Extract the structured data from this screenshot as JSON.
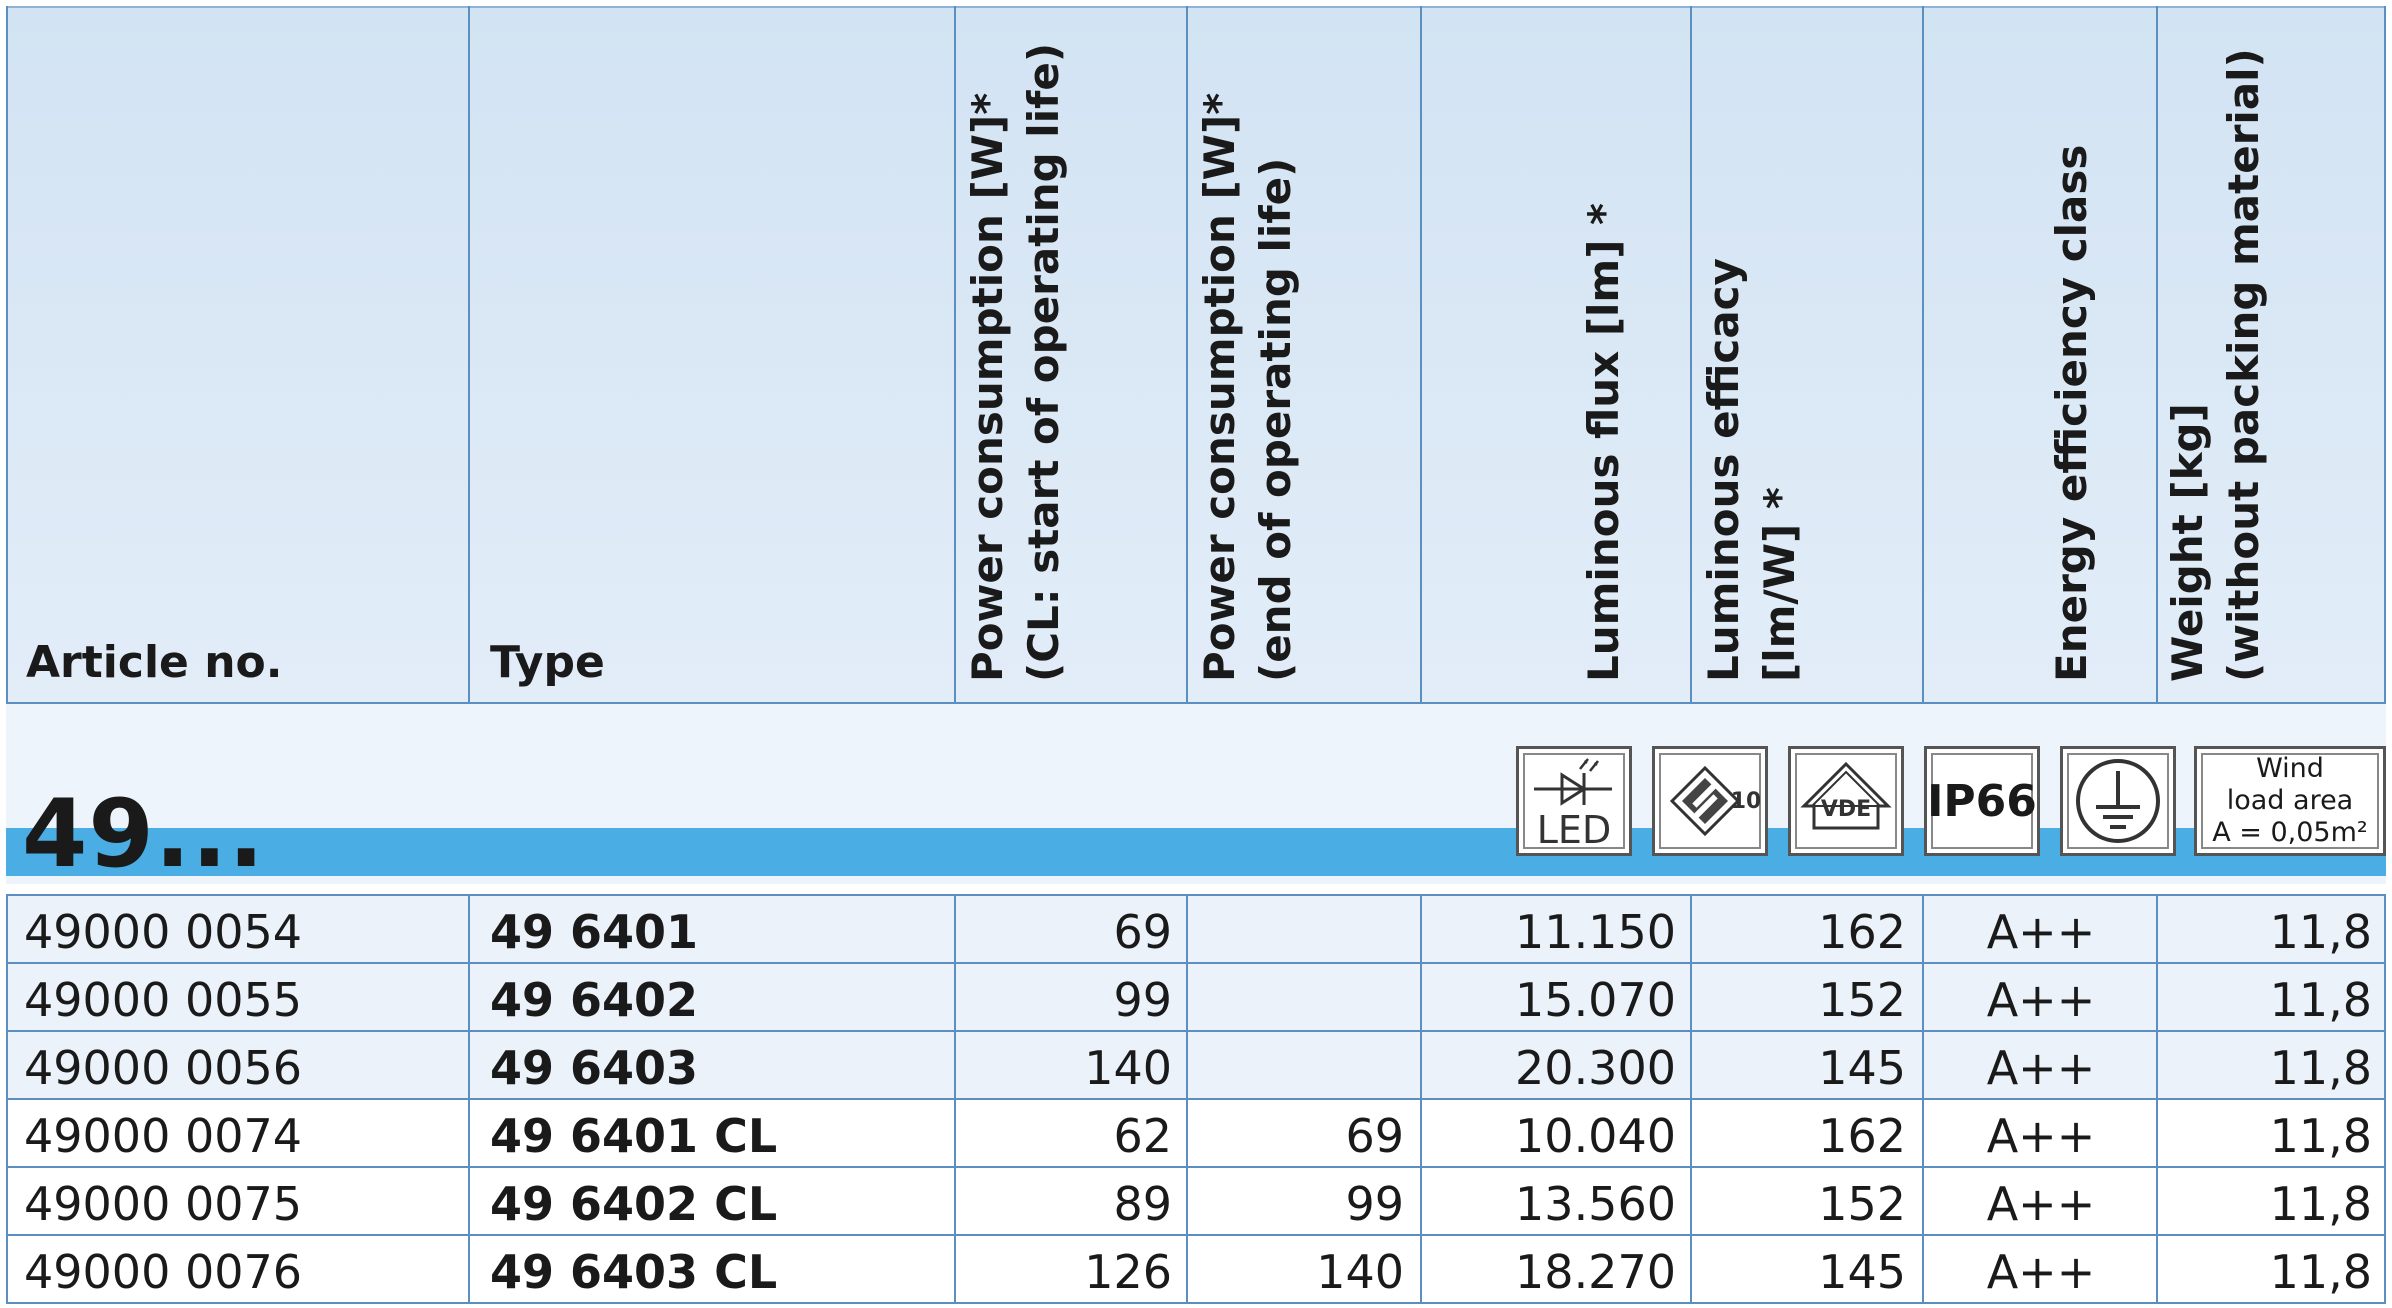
{
  "headers": {
    "article": "Article no.",
    "type": "Type",
    "power_start": [
      "Power consumption [W]*",
      "(CL: start of operating life)"
    ],
    "power_end": [
      "Power consumption [W]*",
      "(end of operating life)"
    ],
    "flux": [
      "Luminous flux [lm] *"
    ],
    "efficacy": [
      "Luminous efficacy",
      "[lm/W] *"
    ],
    "energy": [
      "Energy efficiency class"
    ],
    "weight": [
      "Weight [kg]",
      "(without packing material)"
    ]
  },
  "group": {
    "title": "49...",
    "icons": {
      "led_label": "LED",
      "enec_number": "10",
      "vde_label": "VDE",
      "ip_label": "IP66",
      "wind_lines": [
        "Wind",
        "load area",
        "A = 0,05m²"
      ]
    }
  },
  "rows": [
    {
      "article": "49000 0054",
      "type": "49 6401",
      "power_start": "69",
      "power_end": "",
      "flux": "11.150",
      "efficacy": "162",
      "energy": "A++",
      "weight": "11,8"
    },
    {
      "article": "49000 0055",
      "type": "49 6402",
      "power_start": "99",
      "power_end": "",
      "flux": "15.070",
      "efficacy": "152",
      "energy": "A++",
      "weight": "11,8"
    },
    {
      "article": "49000 0056",
      "type": "49 6403",
      "power_start": "140",
      "power_end": "",
      "flux": "20.300",
      "efficacy": "145",
      "energy": "A++",
      "weight": "11,8"
    },
    {
      "article": "49000 0074",
      "type": "49 6401 CL",
      "power_start": "62",
      "power_end": "69",
      "flux": "10.040",
      "efficacy": "162",
      "energy": "A++",
      "weight": "11,8"
    },
    {
      "article": "49000 0075",
      "type": "49 6402 CL",
      "power_start": "89",
      "power_end": "99",
      "flux": "13.560",
      "efficacy": "152",
      "energy": "A++",
      "weight": "11,8"
    },
    {
      "article": "49000 0076",
      "type": "49 6403 CL",
      "power_start": "126",
      "power_end": "140",
      "flux": "18.270",
      "efficacy": "145",
      "energy": "A++",
      "weight": "11,8"
    }
  ]
}
